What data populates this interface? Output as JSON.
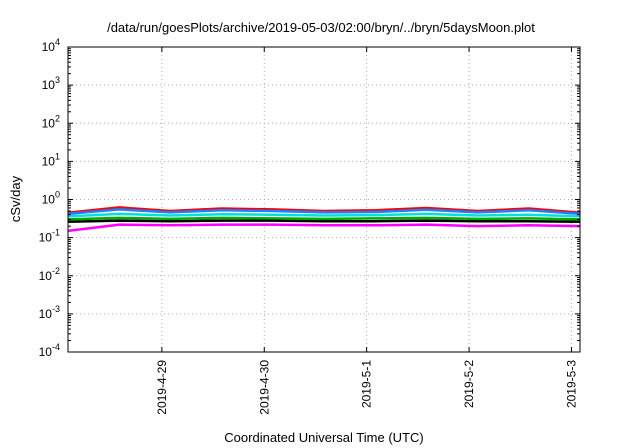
{
  "chart_data": {
    "type": "line",
    "title": "/data/run/goesPlots/archive/2019-05-03/02:00/bryn/../bryn/5daysMoon.plot",
    "xlabel": "Coordinated Universal Time (UTC)",
    "ylabel": "cSv/day",
    "y_scale": "log",
    "ylim": [
      0.0001,
      10000
    ],
    "xlim": [
      "2019-04-28T02:00",
      "2019-05-03T02:00"
    ],
    "y_ticks": [
      {
        "value": 0.0001,
        "base": "10",
        "exp": "-4"
      },
      {
        "value": 0.001,
        "base": "10",
        "exp": "-3"
      },
      {
        "value": 0.01,
        "base": "10",
        "exp": "-2"
      },
      {
        "value": 0.1,
        "base": "10",
        "exp": "-1"
      },
      {
        "value": 1,
        "base": "10",
        "exp": "0"
      },
      {
        "value": 10,
        "base": "10",
        "exp": "1"
      },
      {
        "value": 100,
        "base": "10",
        "exp": "2"
      },
      {
        "value": 1000,
        "base": "10",
        "exp": "3"
      },
      {
        "value": 10000,
        "base": "10",
        "exp": "4"
      }
    ],
    "x_ticks": [
      {
        "value": "2019-04-29T00:00",
        "label": "2019-4-29"
      },
      {
        "value": "2019-04-30T00:00",
        "label": "2019-4-30"
      },
      {
        "value": "2019-05-01T00:00",
        "label": "2019-5-1"
      },
      {
        "value": "2019-05-02T00:00",
        "label": "2019-5-2"
      },
      {
        "value": "2019-05-03T00:00",
        "label": "2019-5-3"
      }
    ],
    "grid": true,
    "series": [
      {
        "color": "#ff00ff",
        "x": [
          "2019-04-28T02:00",
          "2019-04-28T14:00",
          "2019-04-29T02:00",
          "2019-04-29T14:00",
          "2019-04-30T02:00",
          "2019-04-30T14:00",
          "2019-05-01T02:00",
          "2019-05-01T14:00",
          "2019-05-02T02:00",
          "2019-05-02T14:00",
          "2019-05-03T02:00"
        ],
        "y": [
          0.15,
          0.22,
          0.21,
          0.22,
          0.22,
          0.21,
          0.21,
          0.22,
          0.2,
          0.21,
          0.2
        ]
      },
      {
        "color": "#000000",
        "x": [
          "2019-04-28T02:00",
          "2019-04-28T14:00",
          "2019-04-29T02:00",
          "2019-04-29T14:00",
          "2019-04-30T02:00",
          "2019-04-30T14:00",
          "2019-05-01T02:00",
          "2019-05-01T14:00",
          "2019-05-02T02:00",
          "2019-05-02T14:00",
          "2019-05-03T02:00"
        ],
        "y": [
          0.26,
          0.28,
          0.27,
          0.28,
          0.28,
          0.27,
          0.27,
          0.28,
          0.27,
          0.27,
          0.26
        ]
      },
      {
        "color": "#00aa00",
        "x": [
          "2019-04-28T02:00",
          "2019-04-28T14:00",
          "2019-04-29T02:00",
          "2019-04-29T14:00",
          "2019-04-30T02:00",
          "2019-04-30T14:00",
          "2019-05-01T02:00",
          "2019-05-01T14:00",
          "2019-05-02T02:00",
          "2019-05-02T14:00",
          "2019-05-03T02:00"
        ],
        "y": [
          0.3,
          0.33,
          0.31,
          0.33,
          0.32,
          0.31,
          0.32,
          0.33,
          0.31,
          0.32,
          0.3
        ]
      },
      {
        "color": "#00e0e0",
        "x": [
          "2019-04-28T02:00",
          "2019-04-28T14:00",
          "2019-04-29T02:00",
          "2019-04-29T14:00",
          "2019-04-30T02:00",
          "2019-04-30T14:00",
          "2019-05-01T02:00",
          "2019-05-01T14:00",
          "2019-05-02T02:00",
          "2019-05-02T14:00",
          "2019-05-03T02:00"
        ],
        "y": [
          0.36,
          0.42,
          0.38,
          0.41,
          0.4,
          0.38,
          0.39,
          0.42,
          0.38,
          0.4,
          0.36
        ]
      },
      {
        "color": "#ff0000",
        "x": [
          "2019-04-28T02:00",
          "2019-04-28T14:00",
          "2019-04-29T02:00",
          "2019-04-29T14:00",
          "2019-04-30T02:00",
          "2019-04-30T14:00",
          "2019-05-01T02:00",
          "2019-05-01T14:00",
          "2019-05-02T02:00",
          "2019-05-02T14:00",
          "2019-05-03T02:00"
        ],
        "y": [
          0.45,
          0.62,
          0.5,
          0.58,
          0.55,
          0.5,
          0.52,
          0.6,
          0.5,
          0.58,
          0.45
        ]
      },
      {
        "color": "#1e7fff",
        "x": [
          "2019-04-28T02:00",
          "2019-04-28T14:00",
          "2019-04-29T02:00",
          "2019-04-29T14:00",
          "2019-04-30T02:00",
          "2019-04-30T14:00",
          "2019-05-01T02:00",
          "2019-05-01T14:00",
          "2019-05-02T02:00",
          "2019-05-02T14:00",
          "2019-05-03T02:00"
        ],
        "y": [
          0.42,
          0.55,
          0.46,
          0.52,
          0.5,
          0.46,
          0.47,
          0.54,
          0.46,
          0.52,
          0.42
        ]
      }
    ]
  }
}
